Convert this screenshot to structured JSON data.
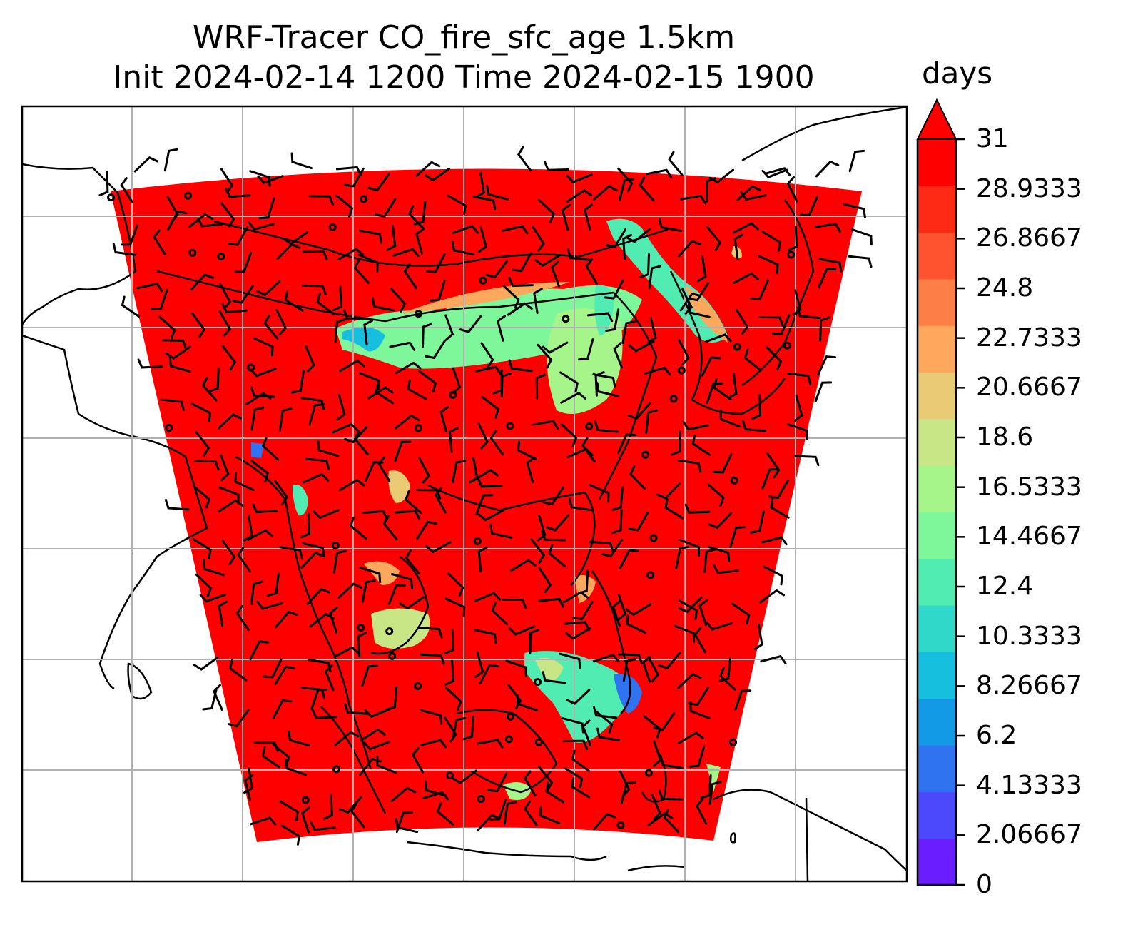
{
  "title": {
    "line1": "WRF-Tracer CO_fire_sfc_age 1.5km",
    "line2": "Init 2024-02-14 1200 Time 2024-02-15 1900"
  },
  "colorbar": {
    "unit": "days",
    "ticks": [
      "0",
      "2.06667",
      "4.13333",
      "6.2",
      "8.26667",
      "10.3333",
      "12.4",
      "14.4667",
      "16.5333",
      "18.6",
      "20.6667",
      "22.7333",
      "24.8",
      "26.8667",
      "28.9333",
      "31"
    ],
    "extend": "max",
    "colors": [
      "#6a1dff",
      "#4c48fb",
      "#2f73f0",
      "#139ae6",
      "#17bfde",
      "#2fd8c8",
      "#51ecb1",
      "#7ef79a",
      "#a5f58a",
      "#c8e685",
      "#e8cb74",
      "#fda85c",
      "#fe7f45",
      "#ff5330",
      "#ff2a15",
      "#ff0000"
    ]
  },
  "map": {
    "field_color": "#ff0000",
    "gridline_color": "#b0b0b0",
    "coastline_color": "#000000"
  }
}
